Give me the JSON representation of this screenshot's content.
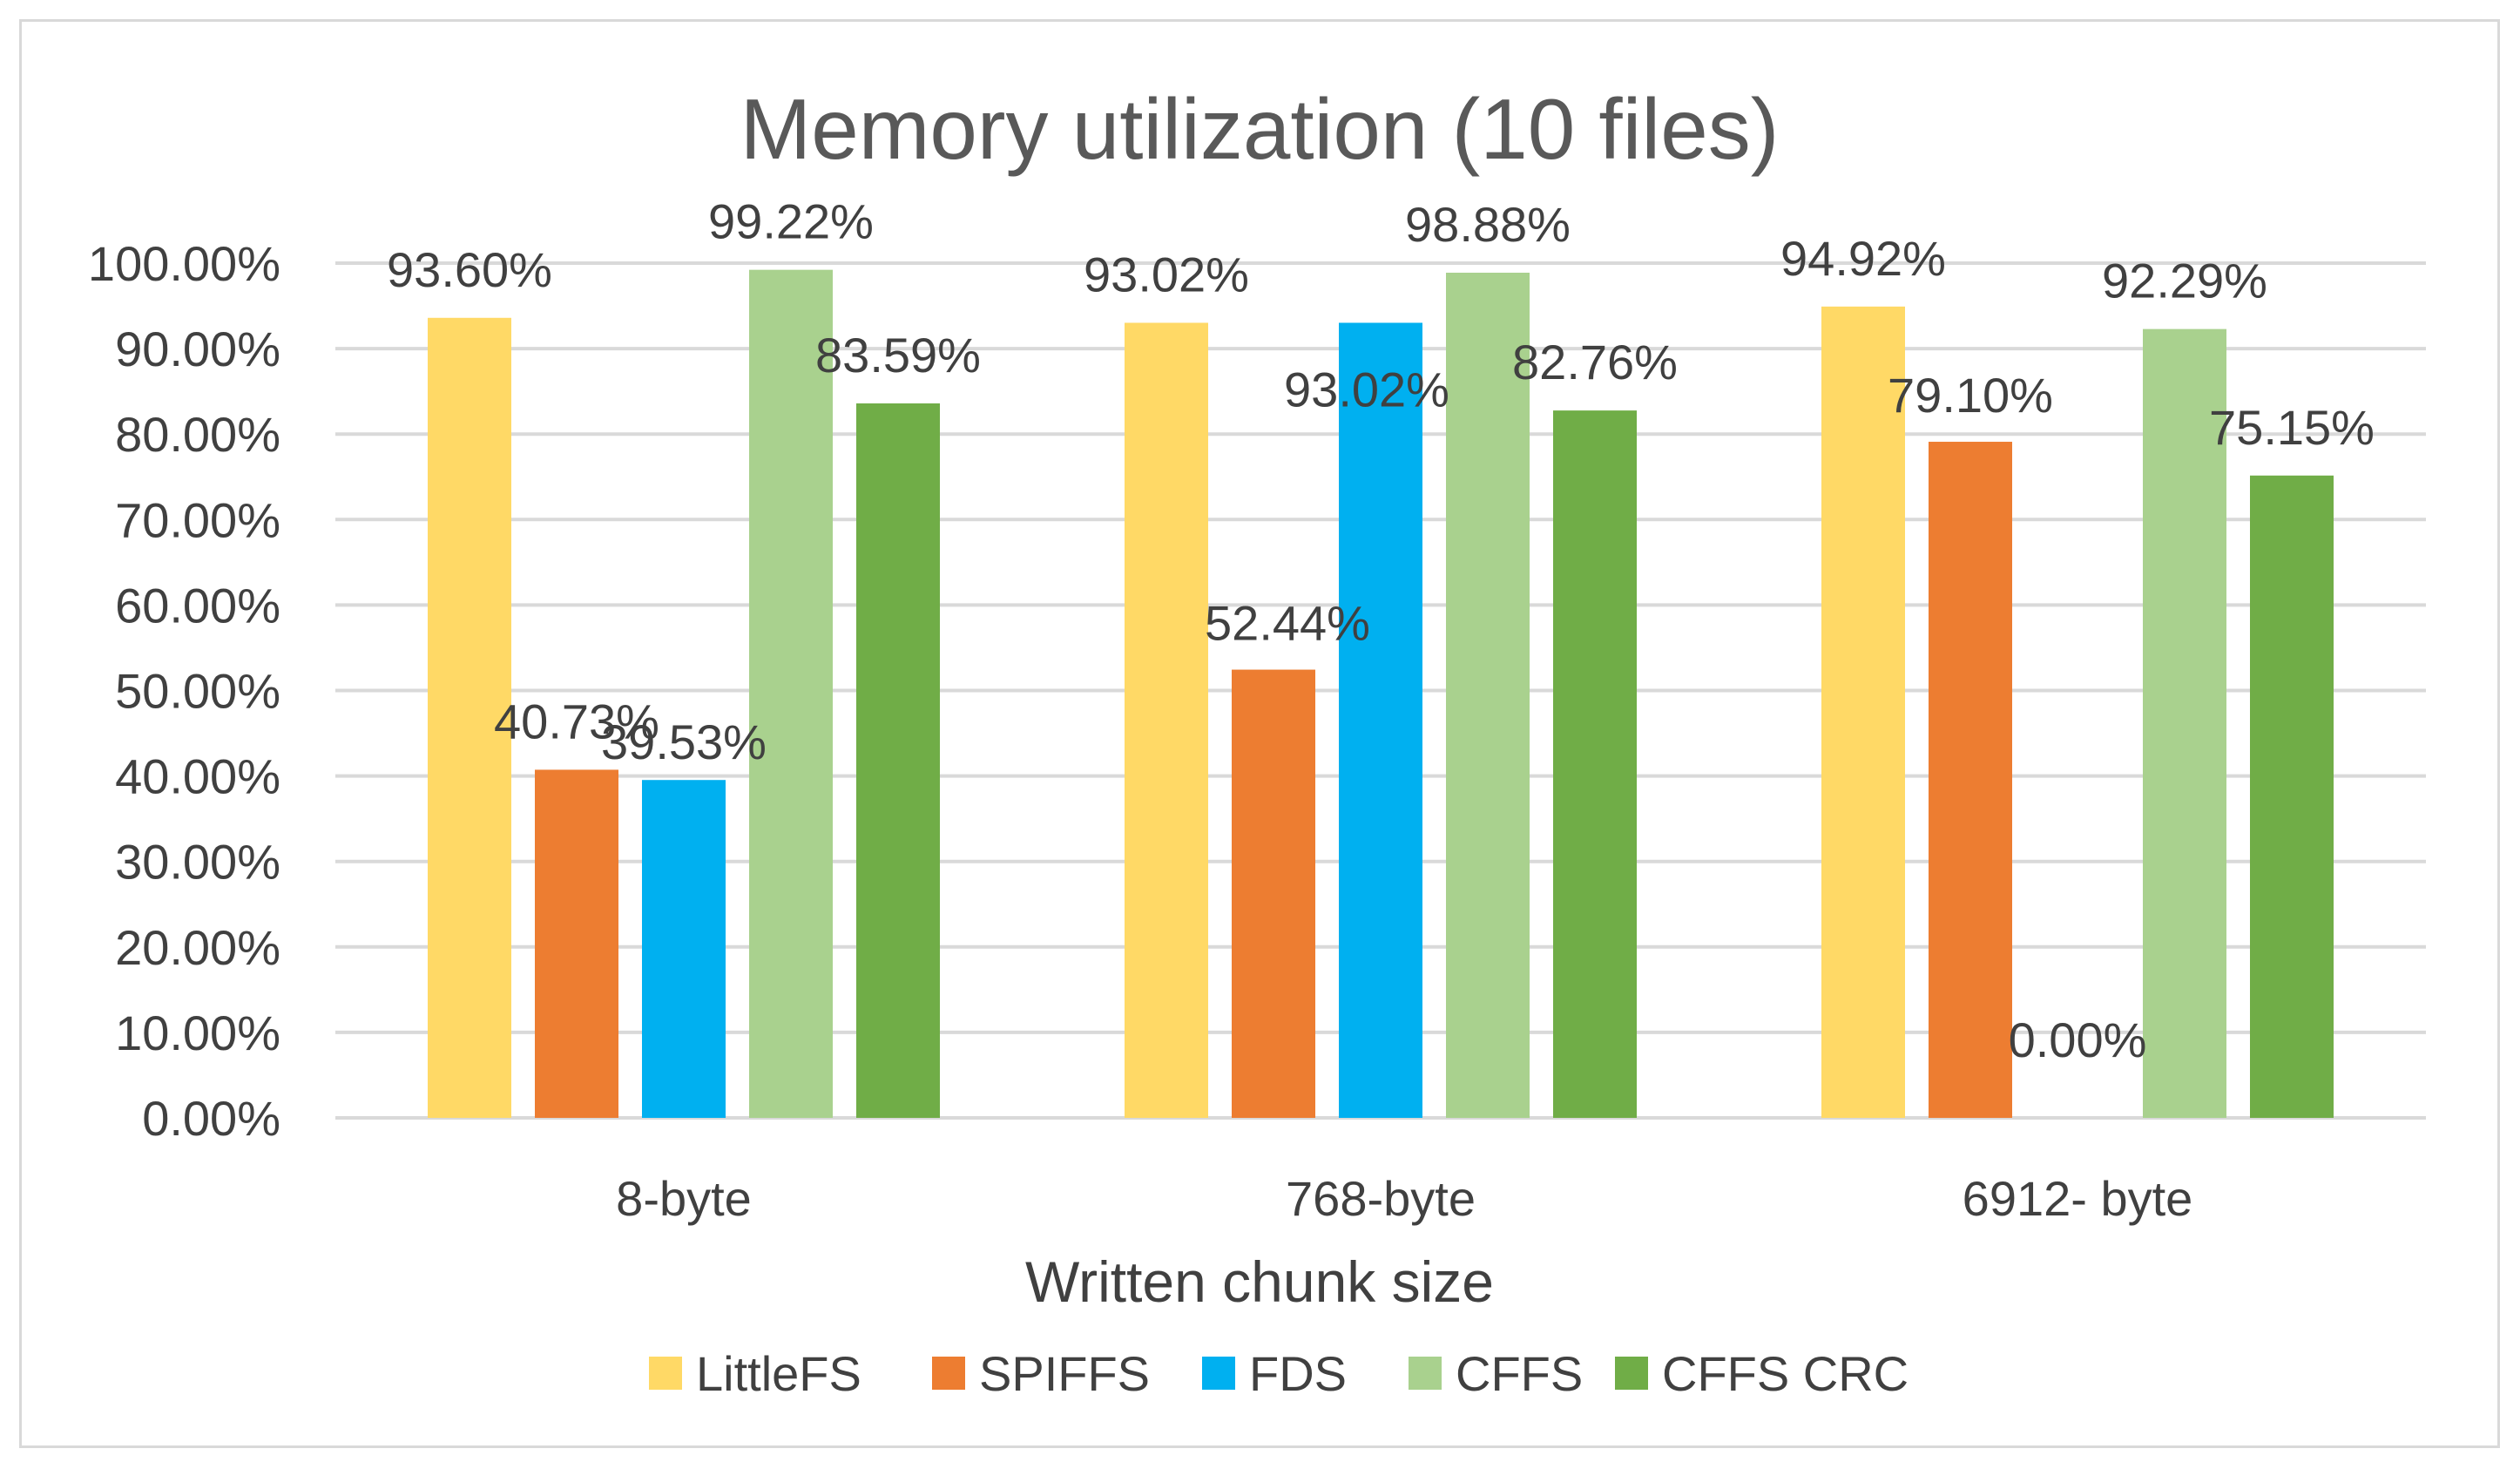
{
  "chart_data": {
    "type": "bar",
    "title": "Memory utilization (10 files)",
    "xlabel": "Written chunk size",
    "ylabel": "",
    "categories": [
      "8-byte",
      "768-byte",
      "6912- byte"
    ],
    "ylim": [
      0,
      100
    ],
    "y_ticks": [
      0,
      10,
      20,
      30,
      40,
      50,
      60,
      70,
      80,
      90,
      100
    ],
    "y_tick_labels": [
      "0.00%",
      "10.00%",
      "20.00%",
      "30.00%",
      "40.00%",
      "50.00%",
      "60.00%",
      "70.00%",
      "80.00%",
      "90.00%",
      "100.00%"
    ],
    "grid": true,
    "legend_position": "bottom",
    "series": [
      {
        "name": "LittleFS",
        "color": "#FFD966",
        "values": [
          93.6,
          93.02,
          94.92
        ],
        "labels": [
          "93.60%",
          "93.02%",
          "94.92%"
        ]
      },
      {
        "name": "SPIFFS",
        "color": "#ED7D31",
        "values": [
          40.73,
          52.44,
          79.1
        ],
        "labels": [
          "40.73%",
          "52.44%",
          "79.10%"
        ]
      },
      {
        "name": "FDS",
        "color": "#00B0F0",
        "values": [
          39.53,
          93.02,
          0.0
        ],
        "labels": [
          "39.53%",
          "93.02%",
          "0.00%"
        ]
      },
      {
        "name": "CFFS",
        "color": "#A9D18E",
        "values": [
          99.22,
          98.88,
          92.29
        ],
        "labels": [
          "99.22%",
          "98.88%",
          "92.29%"
        ]
      },
      {
        "name": "CFFS CRC",
        "color": "#70AD47",
        "values": [
          83.59,
          82.76,
          75.15
        ],
        "labels": [
          "83.59%",
          "82.76%",
          "75.15%"
        ]
      }
    ]
  }
}
